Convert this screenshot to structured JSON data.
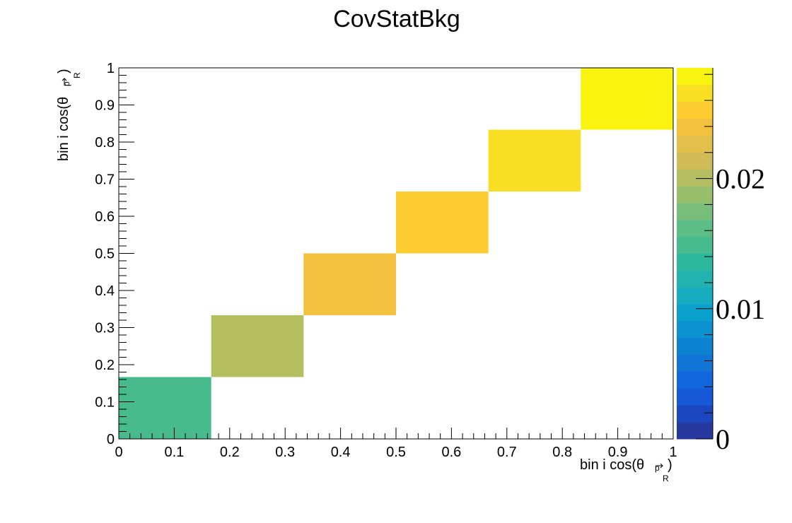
{
  "chart_data": {
    "type": "heatmap",
    "title": "CovStatBkg",
    "xlabel": {
      "main": "bin i cos(θ",
      "sub": "R",
      "close": ")"
    },
    "ylabel": {
      "main": "bin i cos(θ",
      "sub": "R",
      "close": ")"
    },
    "xlim": [
      0,
      1
    ],
    "ylim": [
      0,
      1
    ],
    "zlim": [
      0,
      0.0285
    ],
    "x_ticks": [
      "0",
      "0.1",
      "0.2",
      "0.3",
      "0.4",
      "0.5",
      "0.6",
      "0.7",
      "0.8",
      "0.9",
      "1"
    ],
    "y_ticks": [
      "0",
      "0.1",
      "0.2",
      "0.3",
      "0.4",
      "0.5",
      "0.6",
      "0.7",
      "0.8",
      "0.9",
      "1"
    ],
    "z_ticks": [
      "0",
      "0.01",
      "0.02"
    ],
    "bin_edges": [
      0,
      0.1667,
      0.3333,
      0.5,
      0.6667,
      0.8333,
      1.0
    ],
    "cells": [
      {
        "ix": 0,
        "iy": 0,
        "value": 0.0145
      },
      {
        "ix": 1,
        "iy": 1,
        "value": 0.02
      },
      {
        "ix": 2,
        "iy": 2,
        "value": 0.0235
      },
      {
        "ix": 3,
        "iy": 3,
        "value": 0.0248
      },
      {
        "ix": 4,
        "iy": 4,
        "value": 0.0262
      },
      {
        "ix": 5,
        "iy": 5,
        "value": 0.0283
      }
    ],
    "palette": [
      "#27399e",
      "#1b47c0",
      "#1658d6",
      "#1266db",
      "#1275d6",
      "#0d82d0",
      "#0e91d0",
      "#0aa1cd",
      "#18acc0",
      "#22b3b0",
      "#2cb89d",
      "#47bb8d",
      "#5cbd86",
      "#78be7a",
      "#98bf6c",
      "#b4be61",
      "#d2bc57",
      "#e3bf4b",
      "#f4c13f",
      "#fccc31",
      "#f8df24",
      "#f8f30f"
    ],
    "grid": false
  }
}
